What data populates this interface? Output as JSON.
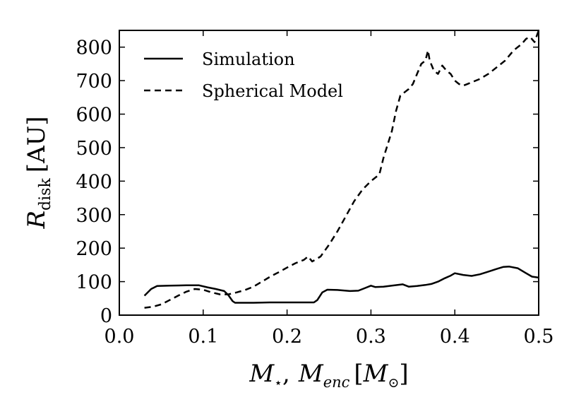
{
  "chart_data": {
    "type": "line",
    "title": "",
    "xlabel": "M⋆, Menc [M⊙]",
    "ylabel": "Rdisk [AU]",
    "xlabel_parts": {
      "m_star_main": "M",
      "m_star_sub": "⋆",
      "separator": ",",
      "m_enc_main": "M",
      "m_enc_sub": "enc",
      "bracket_open": "[",
      "m_sun_main": "M",
      "m_sun_sub": "⊙",
      "bracket_close": "]"
    },
    "ylabel_parts": {
      "main": "R",
      "sub": "disk",
      "unit": "[AU]"
    },
    "xlim": [
      0.0,
      0.5
    ],
    "ylim": [
      0,
      850
    ],
    "xticks": [
      0.0,
      0.1,
      0.2,
      0.3,
      0.4,
      0.5
    ],
    "xtick_labels": [
      "0.0",
      "0.1",
      "0.2",
      "0.3",
      "0.4",
      "0.5"
    ],
    "yticks": [
      0,
      100,
      200,
      300,
      400,
      500,
      600,
      700,
      800
    ],
    "ytick_labels": [
      "0",
      "100",
      "200",
      "300",
      "400",
      "500",
      "600",
      "700",
      "800"
    ],
    "grid": false,
    "legend_position": "top-left",
    "series": [
      {
        "name": "Simulation",
        "linestyle": "solid",
        "color": "#000000",
        "x": [
          0.03,
          0.038,
          0.045,
          0.06,
          0.08,
          0.095,
          0.105,
          0.115,
          0.125,
          0.13,
          0.135,
          0.138,
          0.145,
          0.16,
          0.18,
          0.2,
          0.22,
          0.232,
          0.236,
          0.242,
          0.248,
          0.26,
          0.275,
          0.285,
          0.292,
          0.3,
          0.305,
          0.315,
          0.325,
          0.338,
          0.345,
          0.355,
          0.365,
          0.372,
          0.38,
          0.388,
          0.395,
          0.4,
          0.41,
          0.42,
          0.43,
          0.44,
          0.45,
          0.458,
          0.465,
          0.475,
          0.485,
          0.492,
          0.5
        ],
        "y": [
          58,
          78,
          87,
          88,
          89,
          89,
          83,
          78,
          72,
          60,
          42,
          37,
          37,
          37,
          38,
          38,
          38,
          38,
          45,
          68,
          76,
          75,
          72,
          73,
          80,
          88,
          84,
          85,
          88,
          92,
          85,
          87,
          90,
          93,
          100,
          110,
          118,
          125,
          120,
          117,
          122,
          130,
          138,
          144,
          145,
          140,
          125,
          115,
          112
        ]
      },
      {
        "name": "Spherical Model",
        "linestyle": "dashed",
        "color": "#000000",
        "x": [
          0.03,
          0.04,
          0.05,
          0.06,
          0.07,
          0.08,
          0.09,
          0.1,
          0.11,
          0.12,
          0.13,
          0.14,
          0.15,
          0.16,
          0.17,
          0.18,
          0.19,
          0.2,
          0.21,
          0.22,
          0.225,
          0.23,
          0.24,
          0.25,
          0.26,
          0.27,
          0.28,
          0.29,
          0.3,
          0.305,
          0.31,
          0.315,
          0.32,
          0.325,
          0.33,
          0.335,
          0.34,
          0.345,
          0.35,
          0.355,
          0.36,
          0.365,
          0.368,
          0.37,
          0.375,
          0.38,
          0.385,
          0.39,
          0.395,
          0.4,
          0.405,
          0.41,
          0.415,
          0.42,
          0.43,
          0.44,
          0.45,
          0.46,
          0.47,
          0.48,
          0.485,
          0.49,
          0.495,
          0.5
        ],
        "y": [
          22,
          25,
          32,
          45,
          58,
          70,
          78,
          76,
          68,
          62,
          62,
          68,
          75,
          85,
          100,
          115,
          128,
          142,
          155,
          165,
          175,
          160,
          175,
          210,
          250,
          295,
          340,
          375,
          400,
          410,
          420,
          470,
          510,
          550,
          610,
          655,
          665,
          675,
          690,
          720,
          750,
          760,
          790,
          760,
          730,
          720,
          745,
          730,
          720,
          700,
          690,
          685,
          690,
          695,
          705,
          720,
          740,
          760,
          790,
          810,
          825,
          830,
          815,
          850
        ]
      }
    ]
  }
}
